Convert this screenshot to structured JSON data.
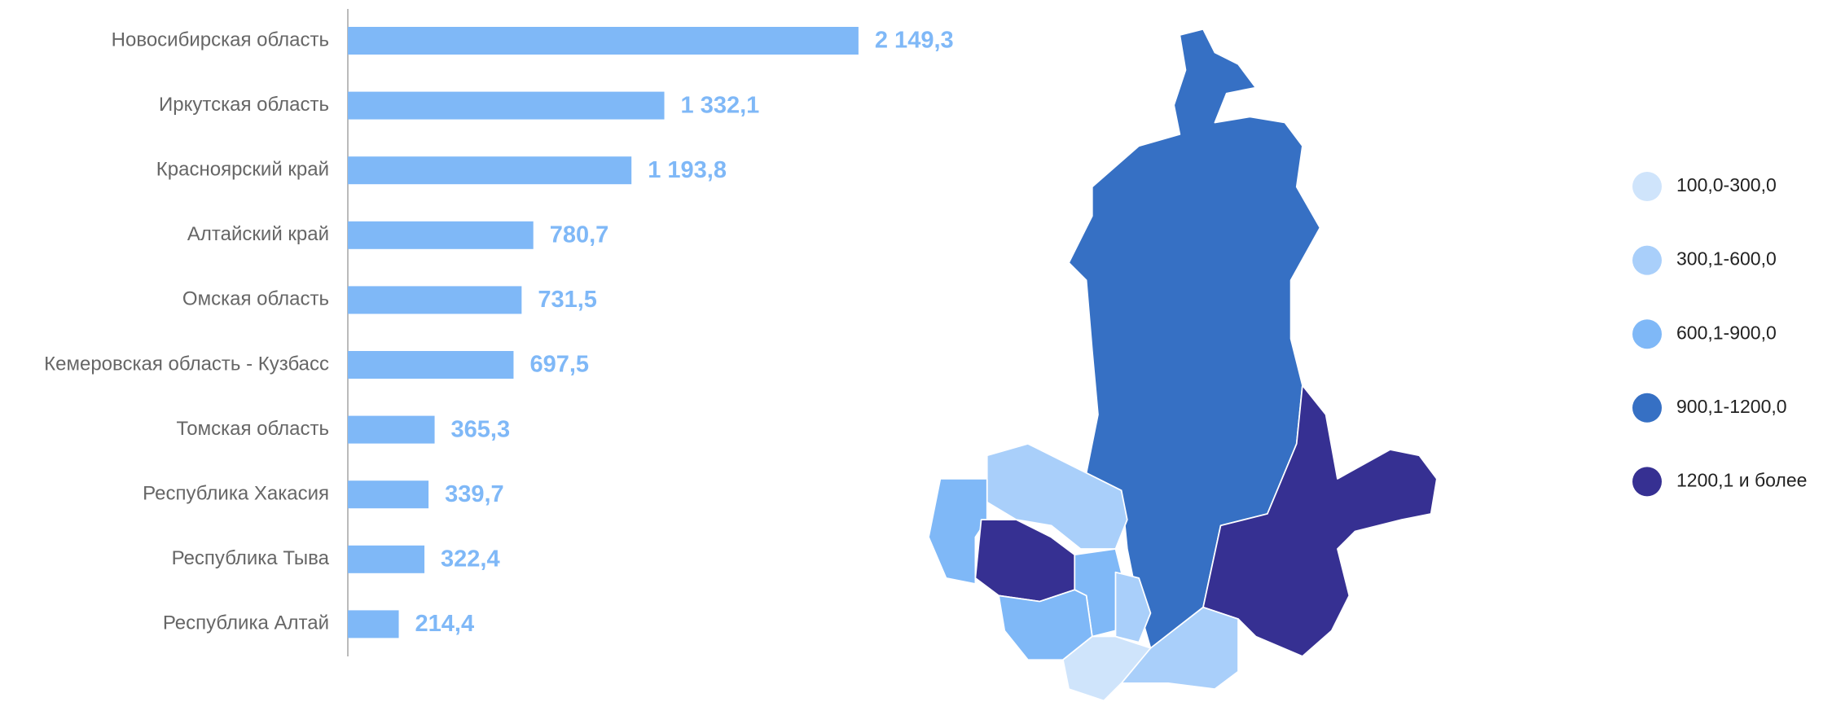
{
  "chart_data": {
    "type": "bar",
    "orientation": "horizontal",
    "categories": [
      "Новосибирская область",
      "Иркутская область",
      "Красноярский край",
      "Алтайский край",
      "Омская область",
      "Кемеровская область - Кузбасс",
      "Томская область",
      "Республика Хакасия",
      "Республика Тыва",
      "Республика Алтай"
    ],
    "values": [
      2149.3,
      1332.1,
      1193.8,
      780.7,
      731.5,
      697.5,
      365.3,
      339.7,
      322.4,
      214.4
    ],
    "value_labels": [
      "2 149,3",
      "1 332,1",
      "1 193,8",
      "780,7",
      "731,5",
      "697,5",
      "365,3",
      "339,7",
      "322,4",
      "214,4"
    ],
    "color": "#7fb8f7",
    "xlim": [
      0,
      3000
    ]
  },
  "map": {
    "legend": [
      {
        "label": "100,0-300,0",
        "color": "#cfe4fb"
      },
      {
        "label": "300,1-600,0",
        "color": "#a9cffa"
      },
      {
        "label": "600,1-900,0",
        "color": "#7fb8f7"
      },
      {
        "label": "900,1-1200,0",
        "color": "#3670c4"
      },
      {
        "label": "1200,1 и более",
        "color": "#363092"
      }
    ]
  }
}
